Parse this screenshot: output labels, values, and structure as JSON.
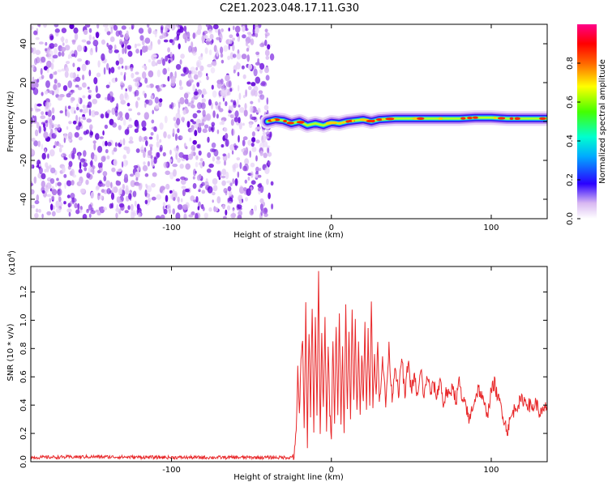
{
  "title": "C2E1.2023.048.17.11.G30",
  "colors": {
    "background": "#ffffff",
    "axis": "#000000",
    "snr_line": "#e8282a",
    "scatter_dark": "#7a00e0",
    "scatter_light": "#e0c4f4"
  },
  "chart_data": [
    {
      "type": "heatmap",
      "title": "",
      "xlabel": "Height of straight line (km)",
      "ylabel": "Frequency (Hz)",
      "xlim": [
        -188,
        135
      ],
      "ylim": [
        -50,
        50
      ],
      "xticks": [
        -100,
        0,
        100
      ],
      "xtick_labels": [
        "-100",
        "0",
        "100"
      ],
      "yticks": [
        -40,
        -20,
        0,
        20,
        40
      ],
      "ytick_labels": [
        "-40",
        "-20",
        "0",
        "20",
        "40"
      ],
      "noise_region_x": [
        -188,
        -37
      ],
      "signal_ridge": {
        "x": [
          -40,
          -35,
          -30,
          -25,
          -20,
          -15,
          -10,
          -5,
          0,
          5,
          10,
          15,
          20,
          25,
          30,
          40,
          50,
          60,
          70,
          80,
          90,
          100,
          110,
          120,
          135
        ],
        "frequency": [
          0,
          1,
          0.5,
          -1,
          0,
          -2,
          -1,
          -2,
          -0.5,
          -1,
          0,
          0.5,
          1,
          0,
          1,
          1.5,
          1.5,
          1.5,
          1.5,
          1.5,
          2,
          2,
          1.5,
          1.5,
          1.5
        ]
      },
      "colorbar": {
        "label": "Normalized spectral amplitude",
        "range": [
          0,
          1
        ],
        "ticks": [
          0,
          0.2,
          0.4,
          0.6,
          0.8
        ],
        "tick_labels": [
          "0.0",
          "0.2",
          "0.4",
          "0.6",
          "0.8"
        ]
      }
    },
    {
      "type": "line",
      "title": "",
      "xlabel": "Height of straight line (km)",
      "ylabel": "SNR (10 * v/v)",
      "multiplier_label": "(x10",
      "multiplier_exp": "4",
      "xlim": [
        -188,
        135
      ],
      "ylim": [
        0,
        1.38
      ],
      "xticks": [
        -100,
        0,
        100
      ],
      "xtick_labels": [
        "-100",
        "0",
        "100"
      ],
      "yticks": [
        0,
        0.2,
        0.4,
        0.6,
        0.8,
        1.0,
        1.2
      ],
      "ytick_labels": [
        "0.0",
        "0.2",
        "0.4",
        "0.6",
        "0.8",
        "1.0",
        "1.2"
      ],
      "series": [
        {
          "x": [
            -188,
            -150,
            -100,
            -50,
            -25,
            -23,
            -22,
            -21,
            -20,
            -19,
            -18,
            -17,
            -16,
            -15,
            -14,
            -13,
            -12,
            -11,
            -10,
            -9,
            -8,
            -7,
            -6,
            -5,
            -4,
            -3,
            -2,
            -1,
            0,
            1,
            2,
            3,
            4,
            5,
            6,
            7,
            8,
            9,
            10,
            11,
            12,
            13,
            14,
            15,
            16,
            17,
            18,
            19,
            20,
            21,
            22,
            23,
            24,
            25,
            26,
            27,
            28,
            29,
            30,
            32,
            34,
            36,
            38,
            40,
            42,
            44,
            46,
            48,
            50,
            52,
            54,
            56,
            58,
            60,
            62,
            64,
            66,
            68,
            70,
            72,
            74,
            76,
            78,
            80,
            82,
            84,
            86,
            88,
            90,
            92,
            94,
            96,
            98,
            100,
            102,
            104,
            106,
            108,
            110,
            112,
            114,
            116,
            118,
            120,
            122,
            124,
            126,
            128,
            130,
            132,
            135
          ],
          "y": [
            0.03,
            0.035,
            0.03,
            0.03,
            0.03,
            0.06,
            0.2,
            0.68,
            0.3,
            0.7,
            0.85,
            0.25,
            1.08,
            0.1,
            0.95,
            0.35,
            1.12,
            0.2,
            1.05,
            0.3,
            1.38,
            0.15,
            0.9,
            0.35,
            1.0,
            0.25,
            0.8,
            0.35,
            0.2,
            0.9,
            0.3,
            1.0,
            0.35,
            1.02,
            0.3,
            0.8,
            0.25,
            1.08,
            0.35,
            0.9,
            0.3,
            1.1,
            0.4,
            1.0,
            0.35,
            0.85,
            0.3,
            0.78,
            0.4,
            0.95,
            0.4,
            0.9,
            0.4,
            1.18,
            0.4,
            0.75,
            0.45,
            0.85,
            0.4,
            0.75,
            0.4,
            0.8,
            0.45,
            0.7,
            0.45,
            0.75,
            0.45,
            0.72,
            0.5,
            0.6,
            0.45,
            0.65,
            0.45,
            0.62,
            0.48,
            0.55,
            0.45,
            0.6,
            0.4,
            0.5,
            0.45,
            0.55,
            0.42,
            0.58,
            0.4,
            0.42,
            0.28,
            0.38,
            0.45,
            0.52,
            0.46,
            0.38,
            0.35,
            0.5,
            0.56,
            0.45,
            0.4,
            0.3,
            0.22,
            0.3,
            0.36,
            0.4,
            0.42,
            0.44,
            0.42,
            0.4,
            0.38,
            0.42,
            0.35,
            0.34,
            0.4
          ]
        }
      ]
    }
  ]
}
